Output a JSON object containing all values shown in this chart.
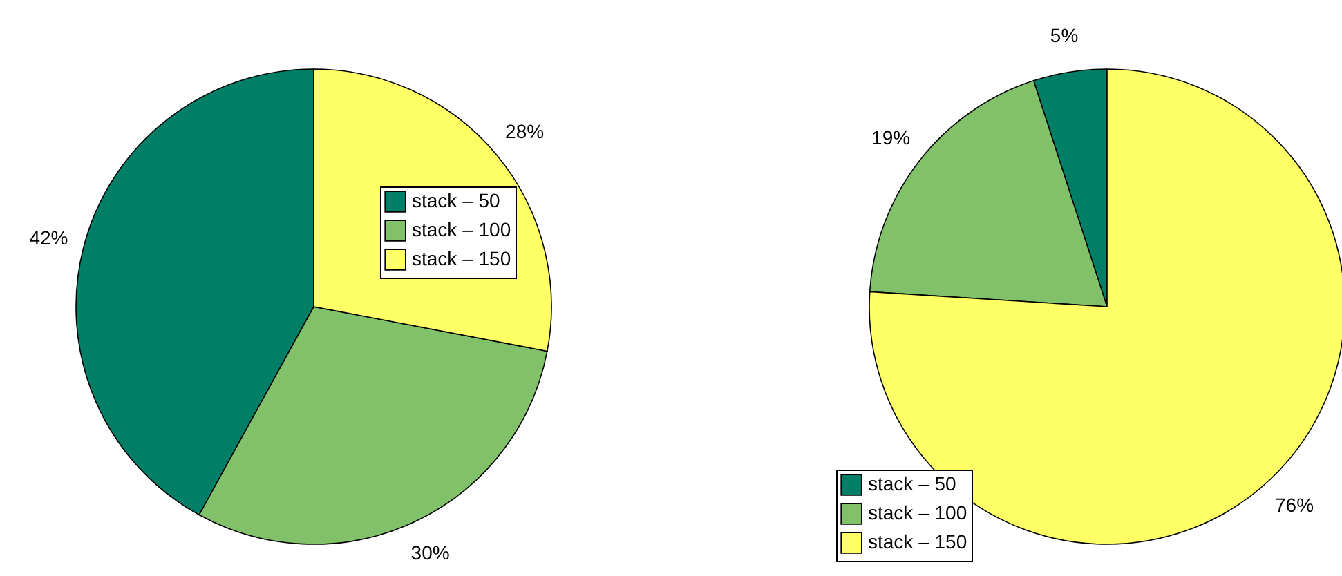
{
  "chart_data": [
    {
      "type": "pie",
      "categories": [
        "stack – 50",
        "stack – 100",
        "stack – 150"
      ],
      "values": [
        42,
        30,
        28
      ],
      "value_labels": [
        "42%",
        "30%",
        "28%"
      ],
      "colors": [
        "#007f66",
        "#80c169",
        "#ffff66"
      ],
      "legend": "top right"
    },
    {
      "type": "pie",
      "categories": [
        "stack – 50",
        "stack – 100",
        "stack – 150"
      ],
      "values": [
        5,
        19,
        76
      ],
      "value_labels": [
        "5%",
        "19%",
        "76%"
      ],
      "colors": [
        "#007f66",
        "#80c169",
        "#ffff66"
      ],
      "legend": "bottom left"
    }
  ]
}
